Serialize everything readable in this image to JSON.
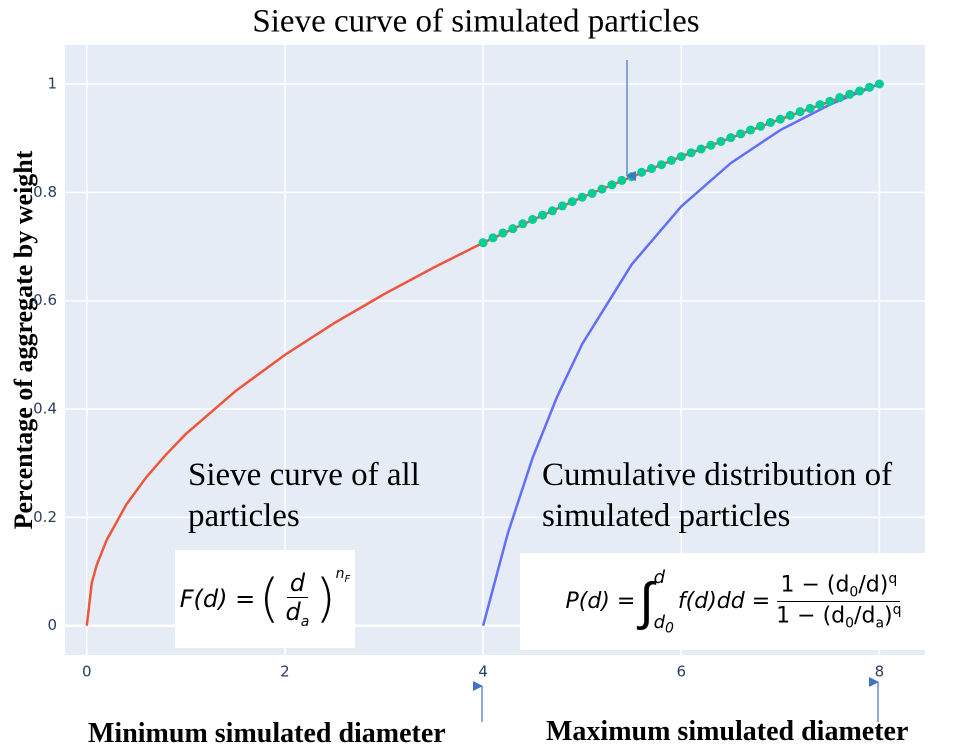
{
  "chart_data": {
    "type": "line",
    "title": "Sieve curve of simulated particles",
    "y_label": "Percentage of aggregate by weight",
    "xlim": [
      -0.22,
      8.46
    ],
    "ylim": [
      -0.054,
      1.072
    ],
    "xticks": [
      0,
      2,
      4,
      6,
      8
    ],
    "yticks": [
      0,
      0.2,
      0.4,
      0.6,
      0.8,
      1
    ],
    "grid": true,
    "series": [
      {
        "mode": "lines",
        "color": "#ef553b",
        "x": [
          0,
          0.05,
          0.1,
          0.2,
          0.4,
          0.6,
          0.8,
          1,
          1.5,
          2,
          2.5,
          3,
          3.5,
          4,
          5,
          6,
          7,
          8
        ],
        "values": [
          0,
          0.079,
          0.112,
          0.158,
          0.224,
          0.274,
          0.316,
          0.354,
          0.433,
          0.5,
          0.559,
          0.612,
          0.661,
          0.707,
          0.791,
          0.866,
          0.935,
          1
        ]
      },
      {
        "mode": "lines",
        "color": "#636efa",
        "x": [
          4,
          4.25,
          4.5,
          4.75,
          5,
          5.5,
          6,
          6.5,
          7,
          7.5,
          8
        ],
        "values": [
          0,
          0.171,
          0.31,
          0.424,
          0.52,
          0.667,
          0.774,
          0.854,
          0.915,
          0.962,
          1
        ]
      },
      {
        "mode": "markers",
        "color": "#00cc96",
        "x": [
          4,
          4.1,
          4.2,
          4.3,
          4.4,
          4.5,
          4.6,
          4.7,
          4.8,
          4.9,
          5,
          5.1,
          5.2,
          5.3,
          5.4,
          5.5,
          5.6,
          5.7,
          5.8,
          5.9,
          6,
          6.1,
          6.2,
          6.3,
          6.4,
          6.5,
          6.6,
          6.7,
          6.8,
          6.9,
          7,
          7.1,
          7.2,
          7.3,
          7.4,
          7.5,
          7.6,
          7.7,
          7.8,
          7.9,
          8
        ],
        "values": [
          0.707,
          0.716,
          0.725,
          0.733,
          0.742,
          0.75,
          0.758,
          0.766,
          0.775,
          0.783,
          0.791,
          0.798,
          0.806,
          0.814,
          0.822,
          0.829,
          0.837,
          0.844,
          0.851,
          0.859,
          0.866,
          0.873,
          0.88,
          0.887,
          0.894,
          0.901,
          0.908,
          0.915,
          0.922,
          0.929,
          0.935,
          0.942,
          0.949,
          0.955,
          0.962,
          0.968,
          0.975,
          0.981,
          0.987,
          0.994,
          1
        ]
      }
    ],
    "annotations": [
      "Sieve curve of all particles",
      "Cumulative distribution of simulated particles",
      "Minimum simulated diameter",
      "Maximum simulated diameter"
    ],
    "formula_all": {
      "lhs": "F(d) =",
      "open": "(",
      "num": "d",
      "den": "d",
      "den_sub": "a",
      "close": ")",
      "exp": "n",
      "exp_sub": "F"
    },
    "formula_sim": {
      "lhs": "P(d) =",
      "integral": "∫",
      "upper": "d",
      "lower": "d",
      "lower_sub": "0",
      "integrand": "f(d)dd =",
      "num": "1 − (d",
      "num_sub": "0",
      "num_rest": "/d)",
      "num_exp": "q",
      "den": "1 − (d",
      "den_sub": "0",
      "den_mid": "/d",
      "den_sub2": "a",
      "den_close": ")",
      "den_exp": "q"
    }
  }
}
